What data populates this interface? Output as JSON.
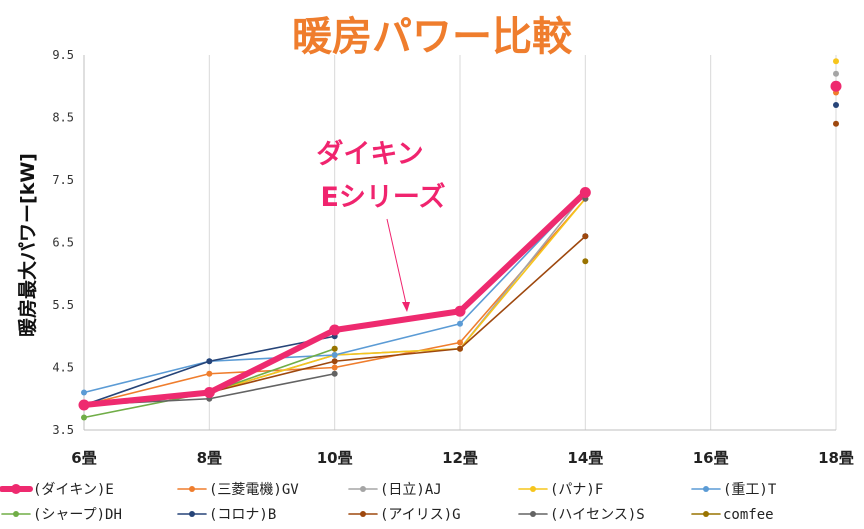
{
  "chart_data": {
    "type": "line",
    "title": "暖房パワー比較",
    "ylabel": "暖房最大パワー[kW]",
    "xlabel": "",
    "categories": [
      "6畳",
      "8畳",
      "10畳",
      "12畳",
      "14畳",
      "16畳",
      "18畳"
    ],
    "ylim": [
      3.5,
      9.5
    ],
    "yticks": [
      "3.5",
      "4.5",
      "5.5",
      "6.5",
      "7.5",
      "8.5",
      "9.5"
    ],
    "grid": "vertical",
    "legend_position": "bottom",
    "annotation": {
      "lines": [
        "ダイキン",
        "Eシリーズ"
      ],
      "target_category": "12畳",
      "target_value": 5.4
    },
    "series": [
      {
        "name": "(ダイキン)E",
        "color": "#ee2a6f",
        "highlight": true,
        "values": [
          3.9,
          4.1,
          5.1,
          5.4,
          7.3,
          null,
          9.0
        ]
      },
      {
        "name": "(三菱電機)GV",
        "color": "#ef7d2d",
        "values": [
          3.9,
          4.4,
          4.5,
          4.9,
          7.2,
          null,
          8.9
        ]
      },
      {
        "name": "(日立)AJ",
        "color": "#a5a5a5",
        "values": [
          3.9,
          4.1,
          4.7,
          4.8,
          7.3,
          null,
          9.2
        ]
      },
      {
        "name": "(パナ)F",
        "color": "#f6c51c",
        "values": [
          3.9,
          4.1,
          4.7,
          4.8,
          7.2,
          null,
          9.4
        ]
      },
      {
        "name": "(重工)T",
        "color": "#5b9bd5",
        "values": [
          4.1,
          4.6,
          4.7,
          5.2,
          7.3,
          null,
          9.0
        ]
      },
      {
        "name": "(シャープ)DH",
        "color": "#70ad47",
        "values": [
          3.7,
          4.1,
          4.8,
          null,
          null,
          null,
          null
        ]
      },
      {
        "name": "(コロナ)B",
        "color": "#264478",
        "values": [
          3.9,
          4.6,
          5.0,
          null,
          6.6,
          null,
          8.7
        ]
      },
      {
        "name": "(アイリス)G",
        "color": "#9e480e",
        "values": [
          3.9,
          4.1,
          4.6,
          4.8,
          6.6,
          null,
          8.4
        ]
      },
      {
        "name": "(ハイセンス)S",
        "color": "#636363",
        "values": [
          3.9,
          4.0,
          4.4,
          null,
          7.2,
          null,
          null
        ]
      },
      {
        "name": "comfee",
        "color": "#997300",
        "values": [
          null,
          null,
          4.8,
          null,
          6.2,
          null,
          null
        ]
      }
    ]
  }
}
